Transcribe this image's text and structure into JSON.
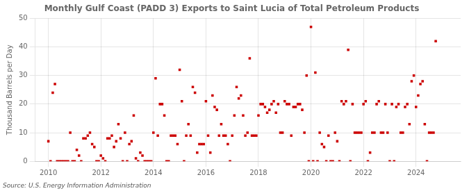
{
  "chart_data": {
    "type": "scatter",
    "title": "Monthly Gulf Coast (PADD 3) Exports to Saint Lucia of Total Petroleum Products",
    "ylabel": "Thousand Barrels per Day",
    "source": "Source: U.S. Energy Information Administration",
    "color": "#cc0000",
    "marker": "square",
    "grid": true,
    "xlim": [
      2009.5,
      2025.7
    ],
    "ylim": [
      0,
      50
    ],
    "xticks": [
      2010,
      2012,
      2014,
      2016,
      2018,
      2020,
      2022,
      2024
    ],
    "yticks": [
      0,
      10,
      20,
      30,
      40,
      50
    ],
    "x": [
      2010.0,
      2010.083,
      2010.167,
      2010.25,
      2010.333,
      2010.417,
      2010.5,
      2010.583,
      2010.667,
      2010.75,
      2010.833,
      2010.917,
      2011.0,
      2011.083,
      2011.167,
      2011.25,
      2011.333,
      2011.417,
      2011.5,
      2011.583,
      2011.667,
      2011.75,
      2011.833,
      2011.917,
      2012.0,
      2012.083,
      2012.167,
      2012.25,
      2012.333,
      2012.417,
      2012.5,
      2012.583,
      2012.667,
      2012.75,
      2012.833,
      2012.917,
      2013.0,
      2013.083,
      2013.167,
      2013.25,
      2013.333,
      2013.417,
      2013.5,
      2013.583,
      2013.667,
      2013.75,
      2013.833,
      2013.917,
      2014.0,
      2014.083,
      2014.167,
      2014.25,
      2014.333,
      2014.417,
      2014.5,
      2014.583,
      2014.667,
      2014.75,
      2014.833,
      2014.917,
      2015.0,
      2015.083,
      2015.167,
      2015.25,
      2015.333,
      2015.417,
      2015.5,
      2015.583,
      2015.667,
      2015.75,
      2015.833,
      2015.917,
      2016.0,
      2016.083,
      2016.167,
      2016.25,
      2016.333,
      2016.417,
      2016.5,
      2016.583,
      2016.667,
      2016.75,
      2016.833,
      2016.917,
      2017.0,
      2017.083,
      2017.167,
      2017.25,
      2017.333,
      2017.417,
      2017.5,
      2017.583,
      2017.667,
      2017.75,
      2017.833,
      2017.917,
      2018.0,
      2018.083,
      2018.167,
      2018.25,
      2018.333,
      2018.417,
      2018.5,
      2018.583,
      2018.667,
      2018.75,
      2018.833,
      2018.917,
      2019.0,
      2019.083,
      2019.167,
      2019.25,
      2019.333,
      2019.417,
      2019.5,
      2019.583,
      2019.667,
      2019.75,
      2019.833,
      2019.917,
      2020.0,
      2020.083,
      2020.167,
      2020.25,
      2020.333,
      2020.417,
      2020.5,
      2020.583,
      2020.667,
      2020.75,
      2020.833,
      2020.917,
      2021.0,
      2021.083,
      2021.167,
      2021.25,
      2021.333,
      2021.417,
      2021.5,
      2021.583,
      2021.667,
      2021.75,
      2021.833,
      2021.917,
      2022.0,
      2022.083,
      2022.167,
      2022.25,
      2022.333,
      2022.417,
      2022.5,
      2022.583,
      2022.667,
      2022.75,
      2022.833,
      2022.917,
      2023.0,
      2023.083,
      2023.167,
      2023.25,
      2023.333,
      2023.417,
      2023.5,
      2023.583,
      2023.667,
      2023.75,
      2023.833,
      2023.917,
      2024.0,
      2024.083,
      2024.167,
      2024.25,
      2024.333,
      2024.417,
      2024.5,
      2024.583,
      2024.667,
      2024.75
    ],
    "values": [
      7,
      0,
      24,
      27,
      0,
      0,
      0,
      0,
      0,
      0,
      10,
      0,
      0,
      4,
      2,
      0,
      8,
      8,
      9,
      10,
      6,
      5,
      0,
      0,
      2,
      1,
      0,
      8,
      8,
      9,
      5,
      7,
      13,
      8,
      0,
      10,
      0,
      6,
      7,
      16,
      1,
      0,
      3,
      2,
      0,
      0,
      0,
      0,
      10,
      29,
      9,
      20,
      20,
      16,
      0,
      0,
      9,
      9,
      9,
      6,
      32,
      21,
      0,
      9,
      13,
      9,
      26,
      24,
      3,
      6,
      6,
      6,
      21,
      9,
      3,
      23,
      19,
      18,
      9,
      13,
      9,
      9,
      6,
      0,
      9,
      16,
      26,
      22,
      23,
      16,
      9,
      10,
      36,
      9,
      9,
      9,
      16,
      20,
      20,
      19,
      17,
      18,
      20,
      21,
      17,
      20,
      10,
      10,
      21,
      20,
      20,
      9,
      19,
      19,
      20,
      20,
      18,
      10,
      30,
      0,
      47,
      0,
      31,
      0,
      10,
      6,
      5,
      0,
      9,
      0,
      0,
      10,
      7,
      0,
      21,
      20,
      21,
      39,
      0,
      20,
      10,
      10,
      10,
      10,
      20,
      21,
      0,
      3,
      10,
      10,
      20,
      21,
      10,
      10,
      20,
      10,
      0,
      20,
      0,
      19,
      20,
      10,
      10,
      19,
      20,
      13,
      28,
      30,
      19,
      23,
      27,
      28,
      13,
      0,
      10,
      10,
      10,
      42
    ]
  }
}
